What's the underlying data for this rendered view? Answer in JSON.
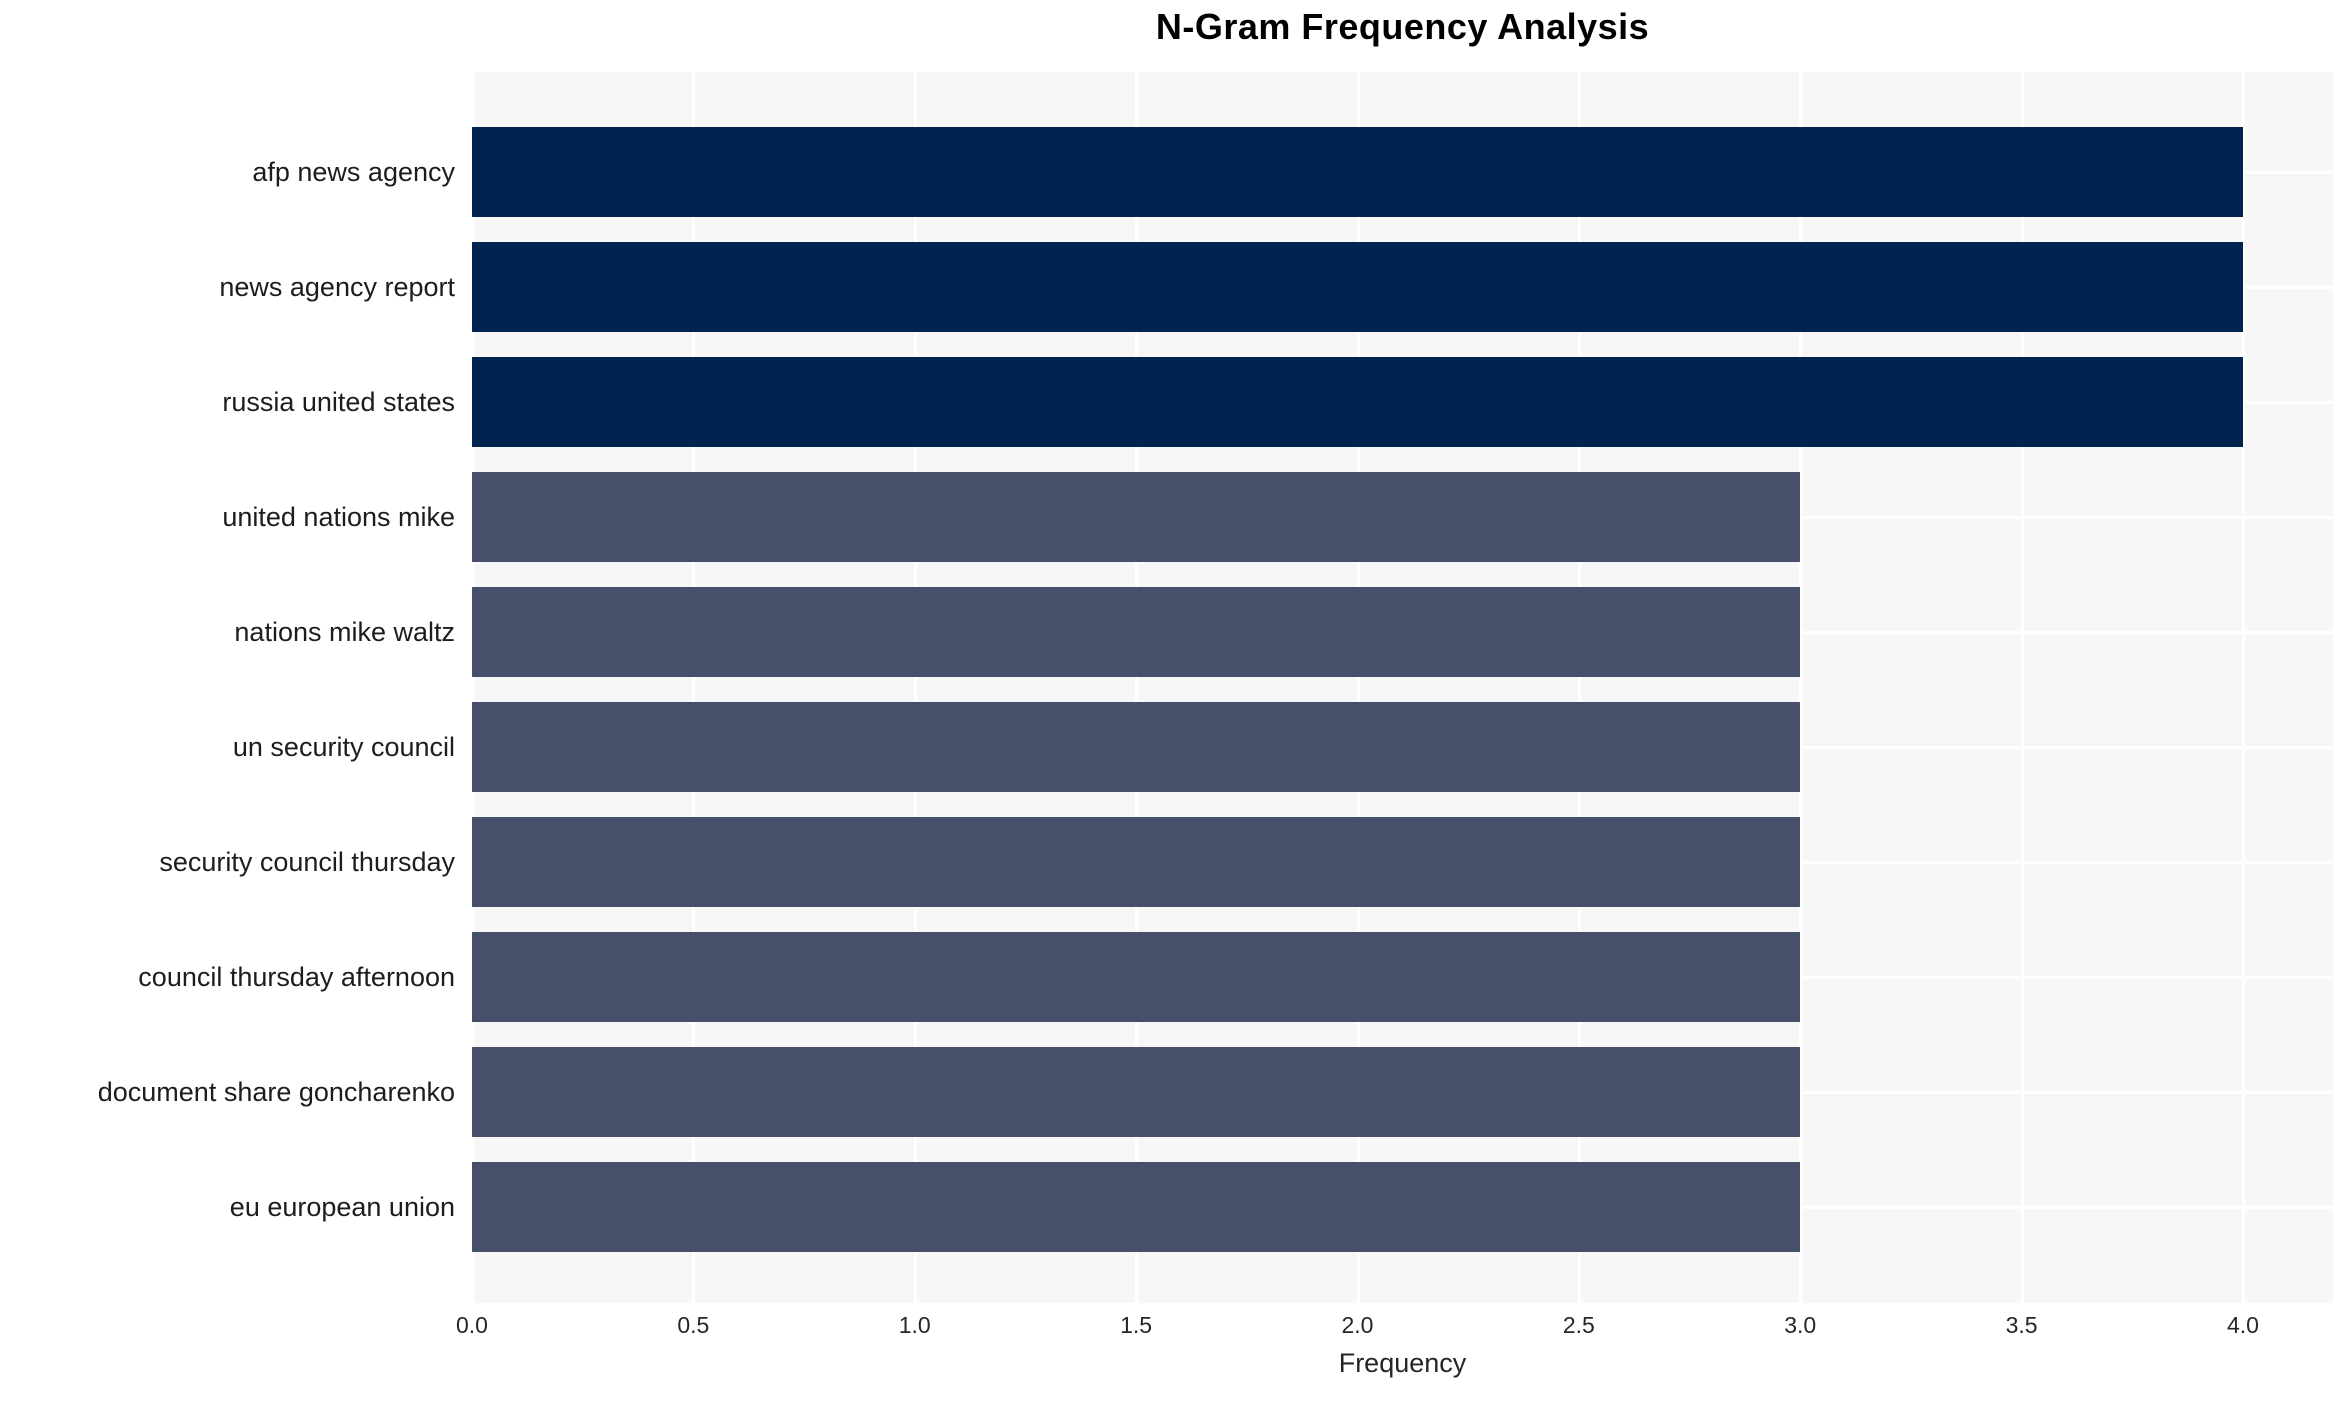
{
  "chart_data": {
    "type": "bar",
    "orientation": "horizontal",
    "title": "N-Gram Frequency Analysis",
    "xlabel": "Frequency",
    "ylabel": "",
    "categories": [
      "afp news agency",
      "news agency report",
      "russia united states",
      "united nations mike",
      "nations mike waltz",
      "un security council",
      "security council thursday",
      "council thursday afternoon",
      "document share goncharenko",
      "eu european union"
    ],
    "values": [
      4,
      4,
      4,
      3,
      3,
      3,
      3,
      3,
      3,
      3
    ],
    "bar_colors": [
      "#012350",
      "#012350",
      "#012350",
      "#46506b",
      "#46506b",
      "#46506b",
      "#46506b",
      "#46506b",
      "#46506b",
      "#46506b"
    ],
    "x_ticks": [
      "0.0",
      "0.5",
      "1.0",
      "1.5",
      "2.0",
      "2.5",
      "3.0",
      "3.5",
      "4.0"
    ],
    "xlim": [
      0,
      4.2
    ],
    "grid": true,
    "grid_color": "#ffffff",
    "plot_background": "#f7f7f7",
    "legend": "none"
  }
}
